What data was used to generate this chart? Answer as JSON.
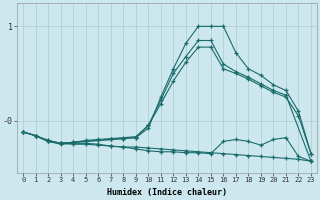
{
  "xlabel": "Humidex (Indice chaleur)",
  "background_color": "#cce8ee",
  "grid_color": "#aacccc",
  "line_color": "#1a6b6b",
  "xlim": [
    -0.5,
    23.5
  ],
  "ylim": [
    -0.55,
    1.25
  ],
  "ytick_positions": [
    1.0,
    0.0
  ],
  "ytick_labels": [
    "1",
    "-0"
  ],
  "xticks": [
    0,
    1,
    2,
    3,
    4,
    5,
    6,
    7,
    8,
    9,
    10,
    11,
    12,
    13,
    14,
    15,
    16,
    17,
    18,
    19,
    20,
    21,
    22,
    23
  ],
  "lines": [
    {
      "x": [
        0,
        1,
        2,
        3,
        4,
        5,
        6,
        7,
        8,
        9,
        10,
        11,
        12,
        13,
        14,
        15,
        16,
        17,
        18,
        19,
        20,
        21,
        22,
        23
      ],
      "y": [
        -0.12,
        -0.16,
        -0.22,
        -0.24,
        -0.25,
        -0.25,
        -0.26,
        -0.27,
        -0.28,
        -0.28,
        -0.29,
        -0.3,
        -0.31,
        -0.32,
        -0.33,
        -0.34,
        -0.35,
        -0.36,
        -0.37,
        -0.38,
        -0.39,
        -0.4,
        -0.41,
        -0.43
      ]
    },
    {
      "x": [
        0,
        1,
        2,
        3,
        4,
        5,
        6,
        7,
        8,
        9,
        10,
        11,
        12,
        13,
        14,
        15,
        16,
        17,
        18,
        19,
        20,
        21,
        22,
        23
      ],
      "y": [
        -0.12,
        -0.16,
        -0.21,
        -0.24,
        -0.23,
        -0.22,
        -0.21,
        -0.2,
        -0.19,
        -0.18,
        -0.08,
        0.25,
        0.55,
        0.82,
        1.0,
        1.0,
        1.0,
        0.72,
        0.55,
        0.48,
        0.38,
        0.32,
        0.1,
        -0.35
      ]
    },
    {
      "x": [
        0,
        1,
        2,
        3,
        4,
        5,
        6,
        7,
        8,
        9,
        10,
        11,
        12,
        13,
        14,
        15,
        16,
        17,
        18,
        19,
        20,
        21,
        22,
        23
      ],
      "y": [
        -0.12,
        -0.16,
        -0.22,
        -0.24,
        -0.23,
        -0.22,
        -0.21,
        -0.2,
        -0.19,
        -0.18,
        -0.05,
        0.18,
        0.42,
        0.62,
        0.78,
        0.78,
        0.55,
        0.5,
        0.44,
        0.37,
        0.3,
        0.25,
        0.05,
        -0.35
      ]
    },
    {
      "x": [
        1,
        2,
        3,
        4,
        5,
        6,
        7,
        8,
        9,
        10,
        11,
        12,
        13,
        14,
        15,
        16,
        17,
        18,
        19,
        20,
        21,
        23
      ],
      "y": [
        -0.16,
        -0.21,
        -0.24,
        -0.23,
        -0.21,
        -0.2,
        -0.19,
        -0.18,
        -0.17,
        -0.05,
        0.22,
        0.5,
        0.68,
        0.85,
        0.85,
        0.6,
        0.52,
        0.46,
        0.39,
        0.32,
        0.27,
        -0.43
      ]
    },
    {
      "x": [
        0,
        1,
        2,
        3,
        4,
        5,
        6,
        7,
        8,
        9,
        10,
        11,
        12,
        13,
        14,
        15,
        16,
        17,
        18,
        19,
        20,
        21,
        22,
        23
      ],
      "y": [
        -0.12,
        -0.16,
        -0.22,
        -0.25,
        -0.24,
        -0.24,
        -0.25,
        -0.27,
        -0.28,
        -0.3,
        -0.32,
        -0.33,
        -0.33,
        -0.34,
        -0.34,
        -0.35,
        -0.22,
        -0.2,
        -0.22,
        -0.26,
        -0.2,
        -0.18,
        -0.38,
        -0.43
      ]
    }
  ]
}
